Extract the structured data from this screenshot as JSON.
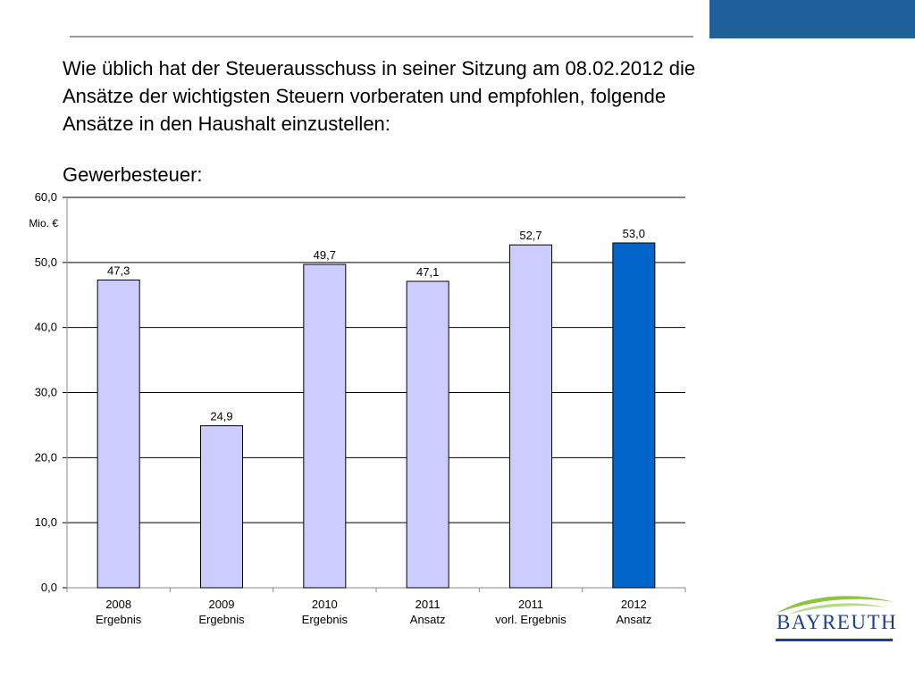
{
  "intro_text": "Wie üblich hat der Steuerausschuss in seiner Sitzung am 08.02.2012 die Ansätze der wichtigsten Steuern vorberaten und empfohlen, folgende Ansätze in den Haushalt einzustellen:",
  "section_title": "Gewerbesteuer:",
  "colors": {
    "bar_default": "#ccccff",
    "bar_highlight": "#0066cc",
    "header_accent": "#1f5f9a",
    "logo_blue": "#1b3f8b",
    "logo_green": "#8cc63f"
  },
  "logo": {
    "text": "BAYREUTH"
  },
  "chart_data": {
    "type": "bar",
    "unit_label": "Mio. €",
    "categories": [
      [
        "2008",
        "Ergebnis"
      ],
      [
        "2009",
        "Ergebnis"
      ],
      [
        "2010",
        "Ergebnis"
      ],
      [
        "2011",
        "Ansatz"
      ],
      [
        "2011",
        "vorl. Ergebnis"
      ],
      [
        "2012",
        "Ansatz"
      ]
    ],
    "values": [
      47.3,
      24.9,
      49.7,
      47.1,
      52.7,
      53.0
    ],
    "value_labels": [
      "47,3",
      "24,9",
      "49,7",
      "47,1",
      "52,7",
      "53,0"
    ],
    "highlight_index": 5,
    "ylim": [
      0,
      60
    ],
    "yticks": [
      0,
      10,
      20,
      30,
      40,
      50,
      60
    ],
    "ytick_labels": [
      "0,0",
      "10,0",
      "20,0",
      "30,0",
      "40,0",
      "50,0",
      "60,0"
    ],
    "grid": true,
    "legend": "none"
  }
}
